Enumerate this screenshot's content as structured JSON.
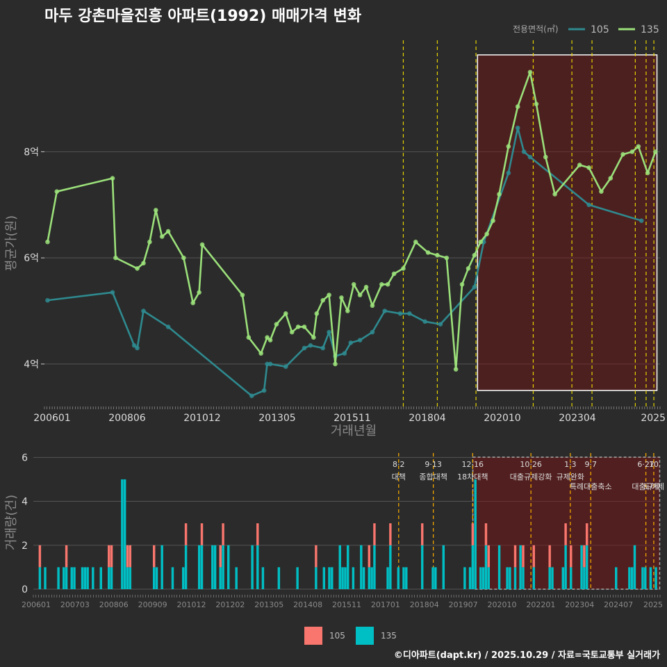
{
  "chart_data": [
    {
      "type": "line",
      "title": "마두 강촌마을진흥 아파트(1992) 매매가격 변화",
      "xlabel": "거래년월",
      "ylabel": "평균가(원)",
      "legend_title": "전용면적(㎡)",
      "legend_position": "top-right",
      "x_ticks": [
        "200601",
        "200806",
        "201012",
        "201305",
        "201511",
        "201804",
        "202010",
        "202304",
        "2025"
      ],
      "y_ticks": [
        {
          "value": 4,
          "label": "4억"
        },
        {
          "value": 6,
          "label": "6억"
        },
        {
          "value": 8,
          "label": "8억"
        }
      ],
      "ylim": [
        3.2,
        10.1
      ],
      "xlim": [
        2006.0,
        2025.9
      ],
      "highlight_range": [
        2020.0,
        2025.8
      ],
      "policy_lines": [
        2017.6,
        2018.7,
        2019.95,
        2021.8,
        2023.05,
        2023.7,
        2025.1,
        2025.45,
        2025.7
      ],
      "series": [
        {
          "name": "105",
          "color": "#2e8a8f",
          "x": [
            2006.1,
            2008.2,
            2008.9,
            2009.0,
            2009.2,
            2010.0,
            2012.7,
            2013.1,
            2013.2,
            2013.3,
            2013.8,
            2014.4,
            2014.6,
            2015.0,
            2015.2,
            2015.4,
            2015.7,
            2015.9,
            2016.2,
            2016.6,
            2017.0,
            2017.5,
            2017.8,
            2018.3,
            2018.8,
            2019.9,
            2020.2,
            2021.0,
            2021.3,
            2021.5,
            2021.7,
            2023.6,
            2025.3
          ],
          "values": [
            5.2,
            5.35,
            4.35,
            4.3,
            5.0,
            4.7,
            3.4,
            3.5,
            4.0,
            4.0,
            3.95,
            4.3,
            4.35,
            4.3,
            4.6,
            4.15,
            4.2,
            4.4,
            4.45,
            4.6,
            5.0,
            4.95,
            4.95,
            4.8,
            4.75,
            5.45,
            6.3,
            7.6,
            8.45,
            8.0,
            7.9,
            7.0,
            6.7
          ]
        },
        {
          "name": "135",
          "color": "#9be07a",
          "x": [
            2006.1,
            2006.4,
            2008.2,
            2008.3,
            2009.0,
            2009.2,
            2009.4,
            2009.6,
            2009.8,
            2010.0,
            2010.5,
            2010.8,
            2011.0,
            2011.1,
            2012.4,
            2012.6,
            2013.0,
            2013.2,
            2013.3,
            2013.5,
            2013.8,
            2014.0,
            2014.2,
            2014.4,
            2014.7,
            2014.8,
            2015.0,
            2015.2,
            2015.4,
            2015.6,
            2015.8,
            2016.0,
            2016.2,
            2016.4,
            2016.6,
            2016.9,
            2017.1,
            2017.3,
            2017.6,
            2018.0,
            2018.4,
            2018.7,
            2019.0,
            2019.3,
            2019.5,
            2019.7,
            2019.9,
            2020.1,
            2020.3,
            2020.5,
            2020.7,
            2021.0,
            2021.3,
            2021.7,
            2021.9,
            2022.2,
            2022.5,
            2023.3,
            2023.6,
            2024.0,
            2024.3,
            2024.7,
            2025.0,
            2025.2,
            2025.5,
            2025.75
          ],
          "values": [
            6.3,
            7.25,
            7.5,
            6.0,
            5.8,
            5.9,
            6.3,
            6.9,
            6.4,
            6.5,
            6.0,
            5.15,
            5.35,
            6.25,
            5.3,
            4.5,
            4.2,
            4.5,
            4.45,
            4.75,
            4.95,
            4.6,
            4.7,
            4.7,
            4.5,
            4.95,
            5.2,
            5.3,
            4.0,
            5.25,
            5.0,
            5.5,
            5.3,
            5.45,
            5.1,
            5.5,
            5.5,
            5.7,
            5.8,
            6.3,
            6.1,
            6.05,
            6.0,
            3.9,
            5.5,
            5.8,
            6.05,
            6.3,
            6.45,
            6.7,
            7.2,
            8.1,
            8.85,
            9.5,
            8.9,
            7.9,
            7.2,
            7.75,
            7.7,
            7.25,
            7.5,
            7.95,
            8.0,
            8.1,
            7.6,
            8.0
          ]
        }
      ]
    },
    {
      "type": "bar",
      "ylabel": "거래량(건)",
      "x_ticks": [
        "200601",
        "200703",
        "200806",
        "200909",
        "201012",
        "201202",
        "201305",
        "201408",
        "201511",
        "201701",
        "201804",
        "201907",
        "202010",
        "202201",
        "202304",
        "202407",
        "2025"
      ],
      "y_ticks": [
        0,
        2,
        4,
        6
      ],
      "ylim": [
        0,
        6.2
      ],
      "series": [
        {
          "name": "105",
          "color": "#f8766d"
        },
        {
          "name": "135",
          "color": "#00bfc4"
        }
      ],
      "policy_labels": [
        {
          "x": 2017.6,
          "date": "8·2",
          "text": "대책"
        },
        {
          "x": 2018.7,
          "date": "9·13",
          "text": "종합대책"
        },
        {
          "x": 2019.95,
          "date": "12·16",
          "text": "18차대책"
        },
        {
          "x": 2021.8,
          "date": "10·26",
          "text": "대출규제강화"
        },
        {
          "x": 2023.05,
          "date": "1·3",
          "text": "규제완화"
        },
        {
          "x": 2023.7,
          "date": "9·7",
          "text": "특례대출축소"
        },
        {
          "x": 2025.45,
          "date": "6·27",
          "text": "대출규제"
        },
        {
          "x": 2025.7,
          "date": "10",
          "text": "토허제"
        }
      ]
    }
  ],
  "legend": {
    "title": "전용면적(㎡)",
    "items": [
      "105",
      "135"
    ]
  },
  "caption": "©디아파트(dapt.kr) / 2025.10.29 / 자료=국토교통부 실거래가"
}
